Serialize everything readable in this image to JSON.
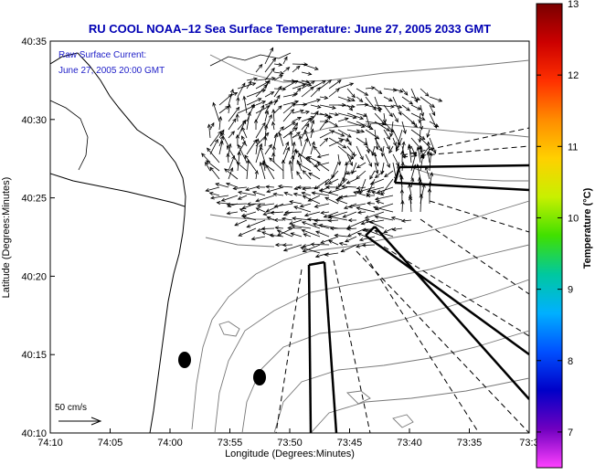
{
  "chart_data": {
    "type": "vector-field-map",
    "title": "RU COOL  NOAA–12  Sea Surface Temperature:  June 27, 2005 2033 GMT",
    "subtitle_lines": [
      "Raw Surface Current:",
      "June 27, 2005 20:00 GMT"
    ],
    "xlabel": "Longitude (Degrees:Minutes)",
    "ylabel": "Latitude (Degrees:Minutes)",
    "x_ticks": [
      "74:10",
      "74:05",
      "74:00",
      "73:55",
      "73:50",
      "73:45",
      "73:40",
      "73:35",
      "73:3"
    ],
    "y_ticks": [
      "40:35",
      "40:30",
      "40:25",
      "40:20",
      "40:15",
      "40:10"
    ],
    "xlim_minutes_west": [
      10,
      30
    ],
    "ylim_minutes_north": [
      10,
      35
    ],
    "scale_label": "50 cm/s",
    "colorbar": {
      "label": "Temperature (°C)",
      "ticks": [
        "13",
        "12",
        "11",
        "10",
        "9",
        "8",
        "7"
      ],
      "range": [
        6.5,
        13
      ],
      "stops": [
        "#7a0000",
        "#cc0000",
        "#ff3000",
        "#ff8c00",
        "#ffd000",
        "#c8f000",
        "#40e000",
        "#00c8a0",
        "#00b0ff",
        "#0050ff",
        "#0000c8",
        "#7000c0",
        "#ff40ff"
      ]
    },
    "title_color": "#0000b4",
    "subtitle_color": "#2020c8"
  }
}
